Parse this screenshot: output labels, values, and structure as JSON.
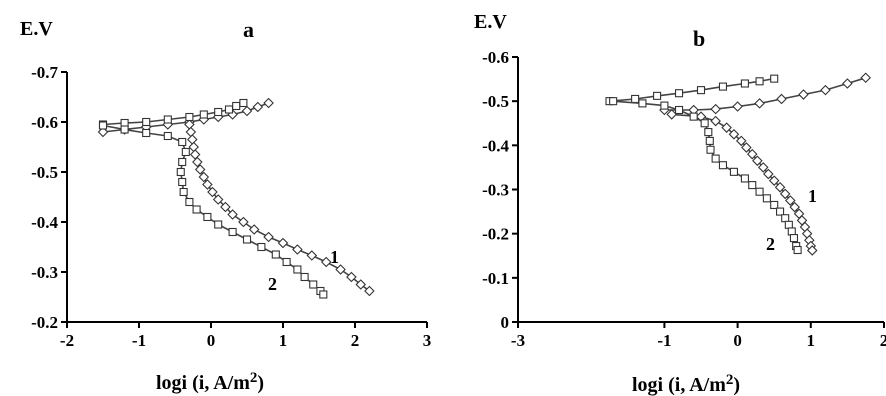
{
  "chart_data": [
    {
      "type": "scatter",
      "title": "a",
      "xlabel": "logi  (i, A/m",
      "xlabel_sup": "2",
      "xlabel_close": ")",
      "ylabel": "E.V",
      "xlim": [
        -2,
        3
      ],
      "ylim": [
        -0.7,
        -0.2
      ],
      "x_ticks": [
        "-2",
        "-1",
        "0",
        "1",
        "2",
        "3"
      ],
      "y_ticks": [
        "-0.7",
        "-0.6",
        "-0.5",
        "-0.4",
        "-0.3",
        "-0.2"
      ],
      "series": [
        {
          "name": "1",
          "marker": "diamond",
          "anodic": [
            [
              -1.5,
              -0.58
            ],
            [
              -1.2,
              -0.585
            ],
            [
              -0.9,
              -0.59
            ],
            [
              -0.6,
              -0.595
            ],
            [
              -0.3,
              -0.6
            ],
            [
              -0.1,
              -0.605
            ],
            [
              0.1,
              -0.61
            ],
            [
              0.3,
              -0.615
            ],
            [
              0.5,
              -0.622
            ],
            [
              0.65,
              -0.63
            ],
            [
              0.8,
              -0.638
            ]
          ],
          "cathodic": [
            [
              -0.3,
              -0.595
            ],
            [
              -0.28,
              -0.58
            ],
            [
              -0.26,
              -0.565
            ],
            [
              -0.24,
              -0.55
            ],
            [
              -0.22,
              -0.535
            ],
            [
              -0.19,
              -0.52
            ],
            [
              -0.15,
              -0.505
            ],
            [
              -0.1,
              -0.49
            ],
            [
              -0.05,
              -0.475
            ],
            [
              0.02,
              -0.46
            ],
            [
              0.1,
              -0.445
            ],
            [
              0.2,
              -0.43
            ],
            [
              0.3,
              -0.415
            ],
            [
              0.45,
              -0.4
            ],
            [
              0.6,
              -0.385
            ],
            [
              0.8,
              -0.37
            ],
            [
              1.0,
              -0.358
            ],
            [
              1.2,
              -0.345
            ],
            [
              1.4,
              -0.333
            ],
            [
              1.6,
              -0.32
            ],
            [
              1.8,
              -0.305
            ],
            [
              1.95,
              -0.29
            ],
            [
              2.08,
              -0.275
            ],
            [
              2.2,
              -0.262
            ]
          ]
        },
        {
          "name": "2",
          "marker": "square",
          "anodic": [
            [
              -1.5,
              -0.595
            ],
            [
              -1.2,
              -0.598
            ],
            [
              -0.9,
              -0.6
            ],
            [
              -0.6,
              -0.605
            ],
            [
              -0.3,
              -0.61
            ],
            [
              -0.1,
              -0.615
            ],
            [
              0.1,
              -0.62
            ],
            [
              0.25,
              -0.625
            ],
            [
              0.35,
              -0.632
            ],
            [
              0.45,
              -0.638
            ]
          ],
          "cathodic": [
            [
              -1.5,
              -0.593
            ],
            [
              -1.2,
              -0.585
            ],
            [
              -0.9,
              -0.578
            ],
            [
              -0.6,
              -0.572
            ],
            [
              -0.4,
              -0.56
            ],
            [
              -0.35,
              -0.54
            ],
            [
              -0.4,
              -0.52
            ],
            [
              -0.42,
              -0.5
            ],
            [
              -0.4,
              -0.48
            ],
            [
              -0.38,
              -0.46
            ],
            [
              -0.3,
              -0.44
            ],
            [
              -0.2,
              -0.425
            ],
            [
              -0.05,
              -0.41
            ],
            [
              0.1,
              -0.395
            ],
            [
              0.3,
              -0.38
            ],
            [
              0.5,
              -0.365
            ],
            [
              0.7,
              -0.35
            ],
            [
              0.9,
              -0.335
            ],
            [
              1.05,
              -0.32
            ],
            [
              1.2,
              -0.305
            ],
            [
              1.3,
              -0.29
            ],
            [
              1.42,
              -0.275
            ],
            [
              1.52,
              -0.262
            ],
            [
              1.56,
              -0.255
            ]
          ]
        }
      ]
    },
    {
      "type": "scatter",
      "title": "b",
      "xlabel": "logi  (i, A/m",
      "xlabel_sup": "2",
      "xlabel_close": ")",
      "ylabel": "E.V",
      "xlim": [
        -3,
        2
      ],
      "ylim": [
        -0.6,
        0
      ],
      "x_ticks": [
        "-3",
        "-1",
        "0",
        "1",
        "2"
      ],
      "x_tick_values": [
        -3,
        -1,
        0,
        1,
        2
      ],
      "y_ticks": [
        "-0.6",
        "-0.5",
        "-0.4",
        "-0.3",
        "-0.2",
        "-0.1",
        "0"
      ],
      "series": [
        {
          "name": "1",
          "marker": "diamond",
          "anodic": [
            [
              -1.0,
              -0.48
            ],
            [
              -0.6,
              -0.48
            ],
            [
              -0.3,
              -0.482
            ],
            [
              0.0,
              -0.488
            ],
            [
              0.3,
              -0.495
            ],
            [
              0.6,
              -0.505
            ],
            [
              0.9,
              -0.515
            ],
            [
              1.2,
              -0.525
            ],
            [
              1.5,
              -0.54
            ],
            [
              1.75,
              -0.553
            ]
          ],
          "cathodic": [
            [
              -0.9,
              -0.47
            ],
            [
              -0.5,
              -0.465
            ],
            [
              -0.3,
              -0.455
            ],
            [
              -0.15,
              -0.44
            ],
            [
              -0.05,
              -0.425
            ],
            [
              0.05,
              -0.41
            ],
            [
              0.12,
              -0.395
            ],
            [
              0.2,
              -0.38
            ],
            [
              0.27,
              -0.365
            ],
            [
              0.35,
              -0.35
            ],
            [
              0.42,
              -0.335
            ],
            [
              0.5,
              -0.32
            ],
            [
              0.58,
              -0.305
            ],
            [
              0.65,
              -0.29
            ],
            [
              0.72,
              -0.275
            ],
            [
              0.78,
              -0.26
            ],
            [
              0.84,
              -0.245
            ],
            [
              0.88,
              -0.23
            ],
            [
              0.92,
              -0.215
            ],
            [
              0.95,
              -0.2
            ],
            [
              0.98,
              -0.185
            ],
            [
              1.0,
              -0.172
            ],
            [
              1.02,
              -0.162
            ]
          ]
        },
        {
          "name": "2",
          "marker": "square",
          "anodic": [
            [
              -1.75,
              -0.5
            ],
            [
              -1.4,
              -0.505
            ],
            [
              -1.1,
              -0.512
            ],
            [
              -0.8,
              -0.518
            ],
            [
              -0.5,
              -0.525
            ],
            [
              -0.2,
              -0.533
            ],
            [
              0.1,
              -0.54
            ],
            [
              0.3,
              -0.545
            ],
            [
              0.5,
              -0.551
            ]
          ],
          "cathodic": [
            [
              -1.7,
              -0.5
            ],
            [
              -1.3,
              -0.495
            ],
            [
              -1.0,
              -0.49
            ],
            [
              -0.8,
              -0.48
            ],
            [
              -0.6,
              -0.465
            ],
            [
              -0.45,
              -0.45
            ],
            [
              -0.4,
              -0.43
            ],
            [
              -0.38,
              -0.41
            ],
            [
              -0.37,
              -0.39
            ],
            [
              -0.3,
              -0.37
            ],
            [
              -0.2,
              -0.355
            ],
            [
              -0.05,
              -0.34
            ],
            [
              0.1,
              -0.325
            ],
            [
              0.2,
              -0.31
            ],
            [
              0.3,
              -0.295
            ],
            [
              0.4,
              -0.28
            ],
            [
              0.5,
              -0.265
            ],
            [
              0.58,
              -0.25
            ],
            [
              0.65,
              -0.235
            ],
            [
              0.7,
              -0.22
            ],
            [
              0.74,
              -0.205
            ],
            [
              0.77,
              -0.19
            ],
            [
              0.8,
              -0.172
            ],
            [
              0.82,
              -0.163
            ]
          ]
        }
      ]
    }
  ]
}
